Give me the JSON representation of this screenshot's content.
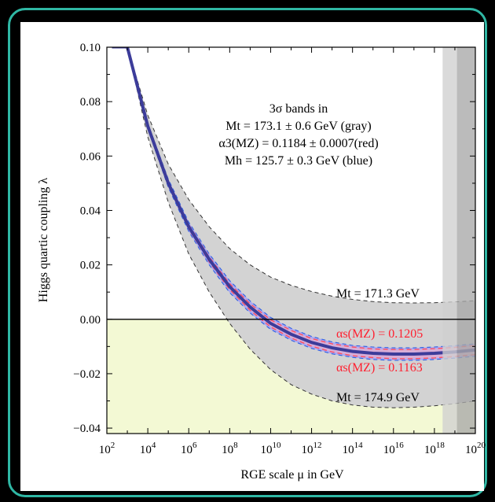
{
  "colors": {
    "frame": "#2fb7a4",
    "negative_region": "#f3f9d4",
    "gray_band": "#d3d3d3",
    "blue_band": "#a9a9f4",
    "red_band_edge": "#ff5060",
    "central_curve": "#3c3c9a",
    "planck_band_light": "#cfcfcf",
    "planck_band_dark": "#a8a8a8"
  },
  "chart_data": {
    "type": "line",
    "xlabel": "RGE scale μ in GeV",
    "ylabel": "Higgs quartic coupling λ",
    "xscale": "log10",
    "xlim": [
      2,
      20
    ],
    "ylim": [
      -0.042,
      0.1
    ],
    "x_ticks": [
      {
        "exp": 2,
        "base": "10",
        "sup": "2"
      },
      {
        "exp": 4,
        "base": "10",
        "sup": "4"
      },
      {
        "exp": 6,
        "base": "10",
        "sup": "6"
      },
      {
        "exp": 8,
        "base": "10",
        "sup": "8"
      },
      {
        "exp": 10,
        "base": "10",
        "sup": "10"
      },
      {
        "exp": 12,
        "base": "10",
        "sup": "12"
      },
      {
        "exp": 14,
        "base": "10",
        "sup": "14"
      },
      {
        "exp": 16,
        "base": "10",
        "sup": "16"
      },
      {
        "exp": 18,
        "base": "10",
        "sup": "18"
      },
      {
        "exp": 20,
        "base": "10",
        "sup": "20"
      }
    ],
    "y_ticks": [
      {
        "value": 0.1,
        "label": "0.10"
      },
      {
        "value": 0.08,
        "label": "0.08"
      },
      {
        "value": 0.06,
        "label": "0.06"
      },
      {
        "value": 0.04,
        "label": "0.04"
      },
      {
        "value": 0.02,
        "label": "0.02"
      },
      {
        "value": 0.0,
        "label": "0.00"
      },
      {
        "value": -0.02,
        "label": "−0.02"
      },
      {
        "value": -0.04,
        "label": "−0.04"
      }
    ],
    "x": [
      3,
      4,
      5,
      6,
      7,
      8,
      9,
      10,
      11,
      12,
      13,
      14,
      15,
      16,
      17,
      18,
      19,
      20
    ],
    "central": [
      0.1,
      0.071,
      0.05,
      0.034,
      0.022,
      0.012,
      0.0045,
      -0.0015,
      -0.0055,
      -0.0085,
      -0.0105,
      -0.0118,
      -0.0125,
      -0.0128,
      -0.0128,
      -0.0125,
      -0.012,
      -0.0113
    ],
    "gray_upper": [
      0.1,
      0.075,
      0.057,
      0.044,
      0.034,
      0.026,
      0.02,
      0.0155,
      0.0125,
      0.0102,
      0.0085,
      0.0073,
      0.0065,
      0.0061,
      0.006,
      0.0061,
      0.0064,
      0.0068
    ],
    "gray_lower": [
      0.1,
      0.067,
      0.043,
      0.024,
      0.01,
      -0.0015,
      -0.011,
      -0.0185,
      -0.024,
      -0.0275,
      -0.03,
      -0.0315,
      -0.0323,
      -0.0325,
      -0.0323,
      -0.0318,
      -0.031,
      -0.03
    ],
    "blue_upper": [
      0.1,
      0.072,
      0.0515,
      0.0357,
      0.024,
      0.0142,
      0.0067,
      0.0007,
      -0.0033,
      -0.0063,
      -0.0083,
      -0.0096,
      -0.0102,
      -0.0105,
      -0.0105,
      -0.0102,
      -0.0097,
      -0.009
    ],
    "blue_lower": [
      0.1,
      0.07,
      0.0485,
      0.0323,
      0.02,
      0.0098,
      0.0023,
      -0.0037,
      -0.0077,
      -0.0107,
      -0.0127,
      -0.014,
      -0.0148,
      -0.0151,
      -0.0151,
      -0.0148,
      -0.0143,
      -0.0136
    ],
    "red_upper": [
      0.1,
      0.0715,
      0.0508,
      0.0348,
      0.0229,
      0.0131,
      0.0057,
      -0.0002,
      -0.0041,
      -0.0071,
      -0.009,
      -0.0102,
      -0.0109,
      -0.0111,
      -0.0111,
      -0.0108,
      -0.0103,
      -0.0096
    ],
    "red_lower": [
      0.1,
      0.0705,
      0.0492,
      0.0332,
      0.0211,
      0.0109,
      0.0033,
      -0.0028,
      -0.0069,
      -0.0099,
      -0.012,
      -0.0134,
      -0.0141,
      -0.0145,
      -0.0145,
      -0.0142,
      -0.0137,
      -0.013
    ],
    "flat_start": {
      "x": [
        2.25,
        3
      ],
      "y": 0.1
    },
    "planck_bands": [
      {
        "from": 18.4,
        "to": 19.1,
        "shade": "light"
      },
      {
        "from": 19.1,
        "to": 20,
        "shade": "dark"
      }
    ],
    "legend_lines": [
      "3σ bands in",
      "Mt = 173.1 ± 0.6 GeV (gray)",
      "α3(MZ) = 0.1184 ± 0.0007(red)",
      "Mh = 125.7 ± 0.3 GeV (blue)"
    ],
    "annotations": {
      "mt_low": "Mt = 171.3 GeV",
      "alpha_high": "αs(MZ) = 0.1205",
      "alpha_low": "αs(MZ) = 0.1163",
      "mt_high": "Mt = 174.9 GeV"
    }
  }
}
